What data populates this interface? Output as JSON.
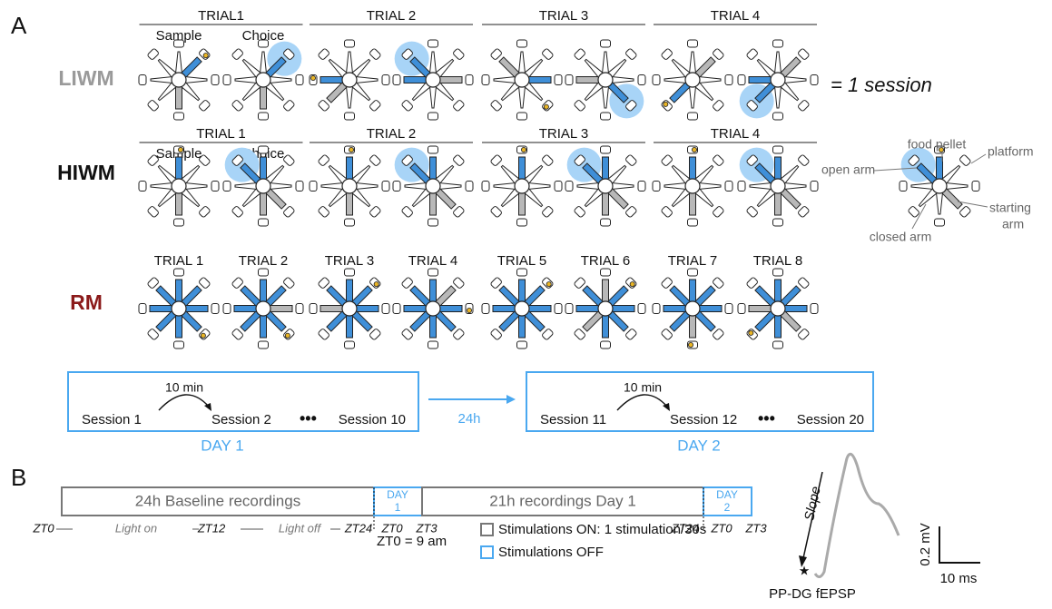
{
  "panel_a": {
    "label": "A",
    "rows": [
      {
        "name": "LIWM",
        "trials": [
          "TRIAL1",
          "TRIAL 2",
          "TRIAL 3",
          "TRIAL 4"
        ],
        "phases": [
          "Sample",
          "Choice"
        ]
      },
      {
        "name": "HIWM",
        "trials": [
          "TRIAL 1",
          "TRIAL 2",
          "TRIAL 3",
          "TRIAL 4"
        ],
        "phases": [
          "Sample",
          "Choice"
        ]
      },
      {
        "name": "RM",
        "trials": [
          "TRIAL 1",
          "TRIAL 2",
          "TRIAL 3",
          "TRIAL 4",
          "TRIAL 5",
          "TRIAL 6",
          "TRIAL 7",
          "TRIAL 8"
        ]
      }
    ],
    "session_note": "= 1 session",
    "legend": {
      "food_pellet": "food pellet",
      "platform": "platform",
      "open_arm": "open arm",
      "starting_arm": [
        "starting",
        "arm"
      ],
      "closed_arm": "closed arm"
    },
    "schedule": {
      "days": [
        {
          "interval": "10 min",
          "sessions": [
            "Session 1",
            "Session 2",
            "Session 10"
          ],
          "label": "DAY 1"
        },
        {
          "interval": "10 min",
          "sessions": [
            "Session 11",
            "Session 12",
            "Session 20"
          ],
          "label": "DAY 2"
        }
      ],
      "gap": "24h"
    }
  },
  "panel_b": {
    "label": "B",
    "timeline": {
      "baseline": "24h  Baseline recordings",
      "day1": [
        "DAY",
        "1"
      ],
      "recording": "21h recordings Day 1",
      "day2": [
        "DAY",
        "2"
      ],
      "zt_labels": [
        "ZT0",
        "Light on",
        "ZT12",
        "Light off",
        "ZT24",
        "ZT0",
        "ZT3",
        "ZT24",
        "ZT0",
        "ZT3"
      ]
    },
    "zt_note": "ZT0 = 9 am",
    "stim_on": "Stimulations ON: 1 stimulation/30s",
    "stim_off": "Stimulations OFF",
    "fepsp": {
      "slope": "Slope",
      "scale_y": "0.2 mV",
      "scale_x": "10 ms",
      "caption": "PP-DG fEPSP"
    }
  }
}
